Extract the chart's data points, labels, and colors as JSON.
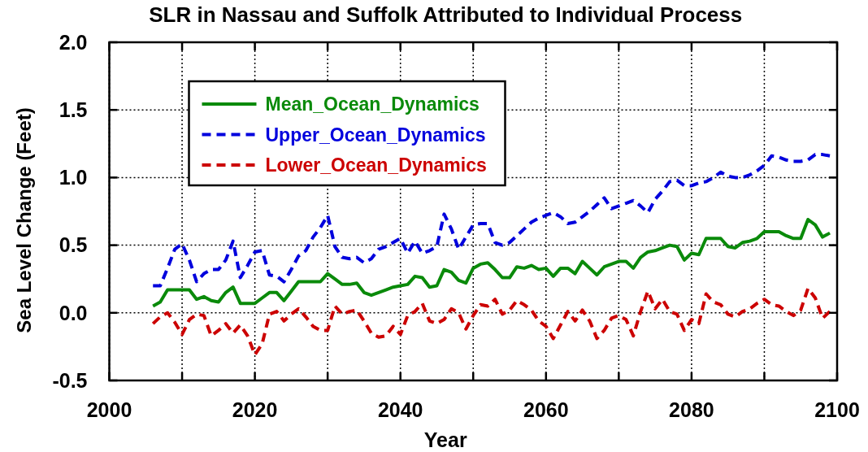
{
  "chart_data": {
    "type": "line",
    "title": "SLR in Nassau and Suffolk Attributed to Individual Process",
    "xlabel": "Year",
    "ylabel": "Sea Level Change (Feet)",
    "x": [
      2006,
      2007,
      2008,
      2009,
      2010,
      2011,
      2012,
      2013,
      2014,
      2015,
      2016,
      2017,
      2018,
      2019,
      2020,
      2021,
      2022,
      2023,
      2024,
      2025,
      2026,
      2027,
      2028,
      2029,
      2030,
      2031,
      2032,
      2033,
      2034,
      2035,
      2036,
      2037,
      2038,
      2039,
      2040,
      2041,
      2042,
      2043,
      2044,
      2045,
      2046,
      2047,
      2048,
      2049,
      2050,
      2051,
      2052,
      2053,
      2054,
      2055,
      2056,
      2057,
      2058,
      2059,
      2060,
      2061,
      2062,
      2063,
      2064,
      2065,
      2066,
      2067,
      2068,
      2069,
      2070,
      2071,
      2072,
      2073,
      2074,
      2075,
      2076,
      2077,
      2078,
      2079,
      2080,
      2081,
      2082,
      2083,
      2084,
      2085,
      2086,
      2087,
      2088,
      2089,
      2090,
      2091,
      2092,
      2093,
      2094,
      2095,
      2096,
      2097,
      2098,
      2099
    ],
    "series": [
      {
        "name": "Mean_Ocean_Dynamics",
        "color": "#0a8a0a",
        "line_style": "solid",
        "values": [
          0.05,
          0.08,
          0.17,
          0.17,
          0.17,
          0.17,
          0.1,
          0.12,
          0.09,
          0.08,
          0.15,
          0.19,
          0.07,
          0.07,
          0.07,
          0.11,
          0.15,
          0.15,
          0.09,
          0.16,
          0.23,
          0.23,
          0.23,
          0.23,
          0.29,
          0.25,
          0.21,
          0.21,
          0.22,
          0.15,
          0.13,
          0.15,
          0.17,
          0.19,
          0.2,
          0.21,
          0.27,
          0.26,
          0.19,
          0.2,
          0.32,
          0.3,
          0.24,
          0.22,
          0.33,
          0.36,
          0.37,
          0.32,
          0.26,
          0.26,
          0.34,
          0.33,
          0.35,
          0.32,
          0.33,
          0.27,
          0.33,
          0.33,
          0.29,
          0.38,
          0.33,
          0.28,
          0.34,
          0.36,
          0.38,
          0.38,
          0.33,
          0.41,
          0.45,
          0.46,
          0.48,
          0.5,
          0.49,
          0.39,
          0.44,
          0.43,
          0.55,
          0.55,
          0.55,
          0.49,
          0.48,
          0.52,
          0.53,
          0.55,
          0.6,
          0.6,
          0.6,
          0.57,
          0.55,
          0.55,
          0.69,
          0.65,
          0.56,
          0.59
        ]
      },
      {
        "name": "Upper_Ocean_Dynamics",
        "color": "#0000dd",
        "line_style": "dashed",
        "values": [
          0.2,
          0.2,
          0.33,
          0.47,
          0.51,
          0.39,
          0.23,
          0.29,
          0.32,
          0.32,
          0.39,
          0.53,
          0.26,
          0.35,
          0.45,
          0.46,
          0.28,
          0.27,
          0.23,
          0.32,
          0.42,
          0.46,
          0.56,
          0.63,
          0.72,
          0.49,
          0.41,
          0.4,
          0.41,
          0.37,
          0.4,
          0.47,
          0.49,
          0.52,
          0.55,
          0.44,
          0.53,
          0.44,
          0.46,
          0.49,
          0.73,
          0.62,
          0.47,
          0.56,
          0.65,
          0.66,
          0.66,
          0.52,
          0.5,
          0.52,
          0.57,
          0.62,
          0.67,
          0.7,
          0.72,
          0.74,
          0.71,
          0.66,
          0.67,
          0.71,
          0.75,
          0.8,
          0.85,
          0.77,
          0.79,
          0.81,
          0.83,
          0.79,
          0.74,
          0.84,
          0.9,
          0.97,
          0.98,
          0.94,
          0.94,
          0.96,
          0.97,
          1.0,
          1.04,
          1.01,
          1.0,
          1.0,
          1.02,
          1.05,
          1.09,
          1.16,
          1.15,
          1.13,
          1.12,
          1.12,
          1.13,
          1.17,
          1.17,
          1.16
        ]
      },
      {
        "name": "Lower_Ocean_Dynamics",
        "color": "#cc0000",
        "line_style": "dashed",
        "values": [
          -0.08,
          -0.03,
          0.0,
          -0.07,
          -0.16,
          -0.05,
          -0.01,
          -0.02,
          -0.17,
          -0.13,
          -0.08,
          -0.15,
          -0.09,
          -0.17,
          -0.31,
          -0.23,
          -0.01,
          0.01,
          -0.06,
          -0.01,
          0.03,
          -0.03,
          -0.1,
          -0.13,
          -0.13,
          0.05,
          -0.01,
          0.01,
          0.02,
          -0.06,
          -0.15,
          -0.18,
          -0.17,
          -0.1,
          -0.16,
          -0.02,
          0.01,
          0.07,
          -0.06,
          -0.08,
          -0.05,
          0.03,
          0.0,
          -0.12,
          -0.02,
          0.06,
          0.05,
          0.1,
          -0.01,
          0.02,
          0.09,
          0.06,
          0.02,
          -0.06,
          -0.1,
          -0.19,
          -0.09,
          0.01,
          -0.06,
          0.02,
          -0.06,
          -0.19,
          -0.13,
          -0.04,
          -0.02,
          -0.05,
          -0.17,
          0.01,
          0.16,
          0.03,
          0.1,
          0.01,
          -0.01,
          -0.13,
          -0.05,
          -0.08,
          0.14,
          0.08,
          0.06,
          -0.01,
          -0.03,
          0.01,
          0.03,
          0.07,
          0.1,
          0.06,
          0.05,
          0.01,
          -0.02,
          0.02,
          0.18,
          0.11,
          -0.04,
          0.01
        ]
      }
    ],
    "xlim": [
      2000,
      2100
    ],
    "xticks": [
      2000,
      {
        "value": 2010,
        "label": null
      },
      2020,
      {
        "value": 2030,
        "label": null
      },
      2040,
      {
        "value": 2050,
        "label": null
      },
      2060,
      {
        "value": 2070,
        "label": null
      },
      2080,
      {
        "value": 2090,
        "label": null
      },
      2100
    ],
    "ylim": [
      -0.5,
      2.0
    ],
    "yticks": [
      -0.5,
      {
        "value": 0,
        "label": "0.0"
      },
      0.5,
      {
        "value": 1,
        "label": "1.0"
      },
      1.5,
      {
        "value": 2,
        "label": "2.0"
      }
    ],
    "grid": true,
    "legend": "top left"
  }
}
